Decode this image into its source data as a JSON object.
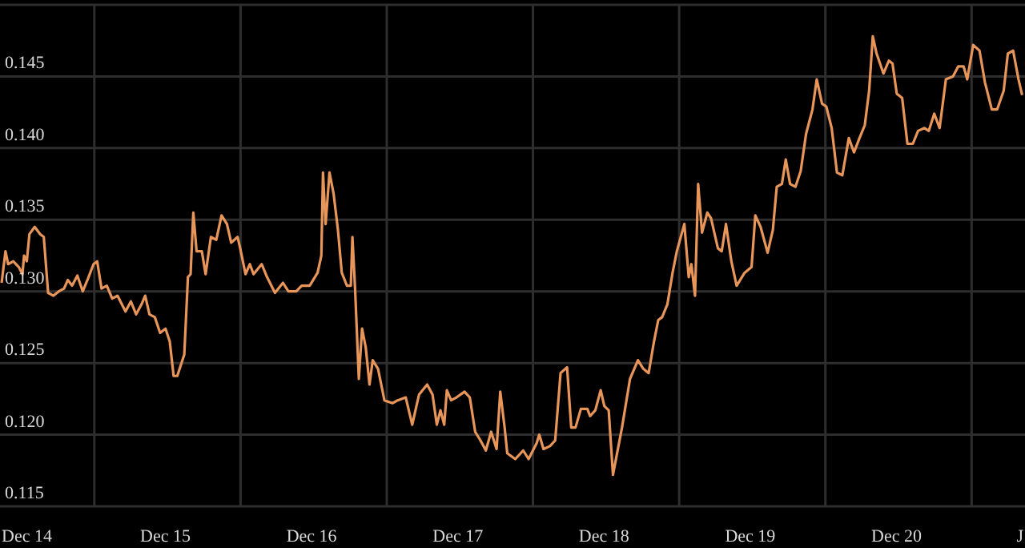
{
  "chart_data": {
    "type": "line",
    "color": "#e8955a",
    "marker": "none",
    "grid": true,
    "x": [
      "--12-13T21:07",
      "--12-13T21:45",
      "--12-13T22:11",
      "--12-13T23:02",
      "--12-13T23:56",
      "--12-14T00:32",
      "--12-14T00:48",
      "--12-14T01:15",
      "--12-14T01:41",
      "--12-14T02:33",
      "--12-14T03:26",
      "--12-14T04:02",
      "--12-14T04:45",
      "--12-14T05:37",
      "--12-14T06:30",
      "--12-14T07:22",
      "--12-14T07:59",
      "--12-14T08:41",
      "--12-14T09:33",
      "--12-14T10:26",
      "--12-14T11:18",
      "--12-14T12:12",
      "--12-14T12:48",
      "--12-14T13:31",
      "--12-14T14:23",
      "--12-14T15:16",
      "--12-14T16:08",
      "--12-14T17:27",
      "--12-14T18:20",
      "--12-14T19:12",
      "--12-14T20:05",
      "--12-14T20:41",
      "--12-14T21:23",
      "--12-14T22:16",
      "--12-14T23:08",
      "--12-15T00:01",
      "--12-15T00:43",
      "--12-15T01:21",
      "--12-15T01:57",
      "--12-15T03:06",
      "--12-15T03:42",
      "--12-15T04:08",
      "--12-15T04:35",
      "--12-15T05:07",
      "--12-15T05:59",
      "--12-15T06:36",
      "--12-15T07:28",
      "--12-15T08:21",
      "--12-15T09:13",
      "--12-15T10:06",
      "--12-15T10:48",
      "--12-15T11:51",
      "--12-15T12:17",
      "--12-15T13:09",
      "--12-15T13:52",
      "--12-15T14:28",
      "--12-15T15:48",
      "--12-15T16:41",
      "--12-15T17:59",
      "--12-15T19:18",
      "--12-15T20:11",
      "--12-15T21:29",
      "--12-15T22:22",
      "--12-15T23:41",
      "--12-16T00:59",
      "--12-16T01:36",
      "--12-16T01:52",
      "--12-16T02:18",
      "--12-16T02:56",
      "--12-16T03:37",
      "--12-16T04:19",
      "--12-16T04:57",
      "--12-16T05:48",
      "--12-16T06:26",
      "--12-16T06:42",
      "--12-16T07:08",
      "--12-16T07:45",
      "--12-16T08:17",
      "--12-16T08:53",
      "--12-16T09:30",
      "--12-16T10:02",
      "--12-16T10:54",
      "--12-16T11:57",
      "--12-16T13:16",
      "--12-16T14:08",
      "--12-16T15:27",
      "--12-16T16:31",
      "--12-16T17:38",
      "--12-16T18:58",
      "--12-16T19:51",
      "--12-16T20:33",
      "--12-16T21:09",
      "--12-16T21:46",
      "--12-16T22:12",
      "--12-16T22:54",
      "--12-16T23:47",
      "--12-17T01:06",
      "--12-17T01:58",
      "--12-17T02:51",
      "--12-17T03:43",
      "--12-17T04:36",
      "--12-17T05:28",
      "--12-17T06:22",
      "--12-17T06:58",
      "--12-17T07:41",
      "--12-17T08:07",
      "--12-17T09:26",
      "--12-17T10:44",
      "--12-17T11:37",
      "--12-17T12:56",
      "--12-17T13:22",
      "--12-17T14:04",
      "--12-17T15:07",
      "--12-17T15:59",
      "--12-17T16:52",
      "--12-17T17:56",
      "--12-17T18:37",
      "--12-17T19:19",
      "--12-17T20:12",
      "--12-17T21:16",
      "--12-17T21:42",
      "--12-17T22:34",
      "--12-17T23:27",
      "--12-18T00:03",
      "--12-18T00:46",
      "--12-18T01:28",
      "--12-18T02:57",
      "--12-18T04:16",
      "--12-18T05:34",
      "--12-18T06:27",
      "--12-18T07:19",
      "--12-18T08:12",
      "--12-18T08:54",
      "--12-18T09:32",
      "--12-18T10:24",
      "--12-18T11:15",
      "--12-18T11:57",
      "--12-18T13:11",
      "--12-18T13:54",
      "--12-18T14:20",
      "--12-18T14:56",
      "--12-18T15:27",
      "--12-18T16:05",
      "--12-18T16:57",
      "--12-18T17:34",
      "--12-18T18:42",
      "--12-18T19:19",
      "--12-18T20:01",
      "--12-18T20:54",
      "--12-18T21:46",
      "--12-18T23:05",
      "--12-19T00:13",
      "--12-19T00:50",
      "--12-19T01:42",
      "--12-19T02:51",
      "--12-19T03:43",
      "--12-19T04:21",
      "--12-19T05:12",
      "--12-19T05:50",
      "--12-19T06:32",
      "--12-19T07:25",
      "--12-19T08:17",
      "--12-19T09:10",
      "--12-19T10:13",
      "--12-19T10:55",
      "--12-19T11:47",
      "--12-19T12:29",
      "--12-19T13:22",
      "--12-19T14:14",
      "--12-19T15:07",
      "--12-19T16:11",
      "--12-19T17:02",
      "--12-19T17:56",
      "--12-19T18:48",
      "--12-19T19:31",
      "--12-19T20:07",
      "--12-19T20:44",
      "--12-19T21:52",
      "--12-19T22:45",
      "--12-19T23:21",
      "--12-20T00:03",
      "--12-20T00:56",
      "--12-20T01:48",
      "--12-20T02:41",
      "--12-20T03:33",
      "--12-20T04:36",
      "--12-20T05:18",
      "--12-20T06:12",
      "--12-20T07:05",
      "--12-20T08:07",
      "--12-20T09:16",
      "--12-20T10:08",
      "--12-20T11:01",
      "--12-20T11:37",
      "--12-20T12:36",
      "--12-20T13:38",
      "--12-20T14:31",
      "--12-20T15:39",
      "--12-20T16:32",
      "--12-20T17:36",
      "--12-20T18:17",
      "--12-20T19:09",
      "--12-20T20:02",
      "--12-20T20:38"
    ],
    "values": [
      0.1306,
      0.1328,
      0.1319,
      0.1321,
      0.1317,
      0.1312,
      0.1325,
      0.1321,
      0.134,
      0.1345,
      0.134,
      0.1338,
      0.1299,
      0.1297,
      0.13,
      0.1302,
      0.1308,
      0.1304,
      0.1311,
      0.13,
      0.1309,
      0.1319,
      0.1321,
      0.1302,
      0.1304,
      0.1295,
      0.1297,
      0.1286,
      0.1293,
      0.1284,
      0.1291,
      0.1297,
      0.1284,
      0.1282,
      0.1271,
      0.1274,
      0.1265,
      0.1241,
      0.1241,
      0.1256,
      0.131,
      0.1312,
      0.1355,
      0.1328,
      0.1328,
      0.1312,
      0.1338,
      0.1336,
      0.1353,
      0.1347,
      0.1334,
      0.1338,
      0.133,
      0.1312,
      0.1319,
      0.1312,
      0.1319,
      0.131,
      0.1299,
      0.1306,
      0.13,
      0.13,
      0.1304,
      0.1304,
      0.1313,
      0.1325,
      0.1383,
      0.1347,
      0.1383,
      0.1368,
      0.1343,
      0.1313,
      0.1304,
      0.1304,
      0.1338,
      0.1302,
      0.1239,
      0.1274,
      0.1261,
      0.1235,
      0.1252,
      0.1246,
      0.1224,
      0.1222,
      0.1224,
      0.1226,
      0.1207,
      0.1228,
      0.1235,
      0.1228,
      0.1207,
      0.1217,
      0.1207,
      0.1231,
      0.1224,
      0.1226,
      0.123,
      0.1226,
      0.1202,
      0.1196,
      0.1189,
      0.1202,
      0.119,
      0.123,
      0.1205,
      0.1187,
      0.1183,
      0.1189,
      0.1183,
      0.1194,
      0.12,
      0.119,
      0.1192,
      0.1196,
      0.1243,
      0.1247,
      0.1205,
      0.1205,
      0.1218,
      0.1218,
      0.1213,
      0.1217,
      0.1231,
      0.122,
      0.1217,
      0.1172,
      0.1205,
      0.1239,
      0.1252,
      0.1246,
      0.1243,
      0.1265,
      0.128,
      0.1282,
      0.1291,
      0.1313,
      0.1328,
      0.1347,
      0.131,
      0.1319,
      0.1297,
      0.1375,
      0.1341,
      0.1355,
      0.1351,
      0.133,
      0.1328,
      0.1347,
      0.1321,
      0.1304,
      0.1313,
      0.1317,
      0.1353,
      0.1345,
      0.1327,
      0.1343,
      0.1373,
      0.1375,
      0.1392,
      0.1375,
      0.1373,
      0.1384,
      0.141,
      0.1427,
      0.1448,
      0.1431,
      0.1429,
      0.1414,
      0.1383,
      0.1381,
      0.1407,
      0.1397,
      0.1407,
      0.1416,
      0.144,
      0.1478,
      0.1466,
      0.1452,
      0.1461,
      0.1459,
      0.1438,
      0.1435,
      0.1403,
      0.1403,
      0.1412,
      0.1414,
      0.1412,
      0.1424,
      0.1414,
      0.1448,
      0.145,
      0.1457,
      0.1457,
      0.1448,
      0.1472,
      0.1468,
      0.1446,
      0.1427,
      0.1427,
      0.144,
      0.1466,
      0.1468,
      0.1448,
      0.1437
    ],
    "xlim": [
      "--12-13T20:51",
      "--12-20T21:06"
    ],
    "xticks": [
      {
        "value": "--12-14T00:00",
        "label": "Dec 14"
      },
      {
        "value": "--12-14T12:20",
        "label": null
      },
      {
        "value": "--12-15T00:00",
        "label": "Dec 15"
      },
      {
        "value": "--12-15T12:20",
        "label": null
      },
      {
        "value": "--12-16T00:00",
        "label": "Dec 16"
      },
      {
        "value": "--12-16T12:20",
        "label": null
      },
      {
        "value": "--12-17T00:00",
        "label": "Dec 17"
      },
      {
        "value": "--12-17T12:20",
        "label": null
      },
      {
        "value": "--12-18T00:00",
        "label": "Dec 18"
      },
      {
        "value": "--12-18T12:20",
        "label": null
      },
      {
        "value": "--12-19T00:00",
        "label": "Dec 19"
      },
      {
        "value": "--12-19T12:20",
        "label": null
      },
      {
        "value": "--12-20T00:00",
        "label": "Dec 20"
      },
      {
        "value": "--12-20T12:20",
        "label": null
      },
      {
        "value": "--12-20T20:38",
        "label": "J"
      }
    ],
    "ylim": [
      0.115,
      0.15
    ],
    "yticks": [
      0.115,
      {
        "value": 0.12,
        "label": "0.120"
      },
      0.125,
      {
        "value": 0.13,
        "label": "0.130"
      },
      0.135,
      {
        "value": 0.14,
        "label": "0.140"
      },
      0.145,
      {
        "value": 0.15,
        "label": null
      }
    ]
  }
}
